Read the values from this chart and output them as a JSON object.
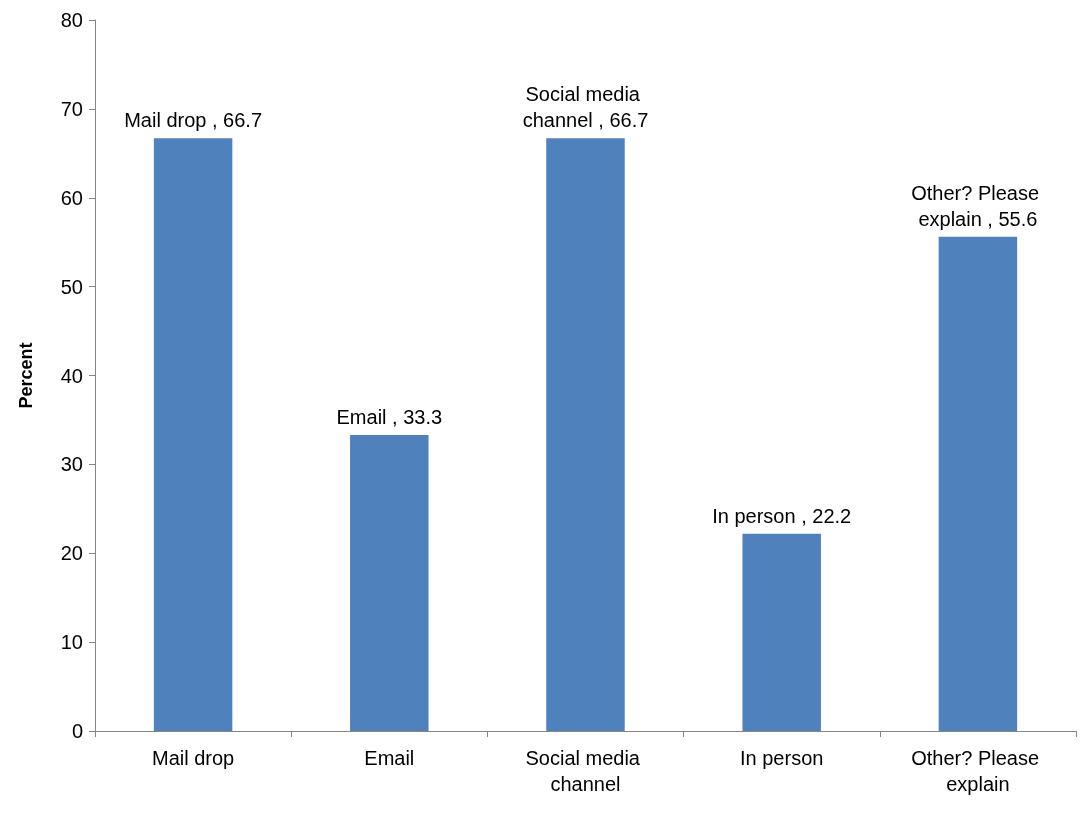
{
  "chart_data": {
    "type": "bar",
    "ylabel": "Percent",
    "categories": [
      "Mail drop",
      "Email",
      "Social media channel",
      "In person",
      "Other? Please explain"
    ],
    "values": [
      66.7,
      33.3,
      66.7,
      22.2,
      55.6
    ],
    "value_labels": [
      "Mail drop , 66.7",
      "Email , 33.3",
      "Social media channel , 66.7",
      "In person , 22.2",
      "Other? Please explain , 55.6"
    ],
    "color": "#4f81bd",
    "ylim": [
      0,
      80
    ],
    "yticks": [
      0,
      10,
      20,
      30,
      40,
      50,
      60,
      70,
      80
    ],
    "grid": false
  }
}
